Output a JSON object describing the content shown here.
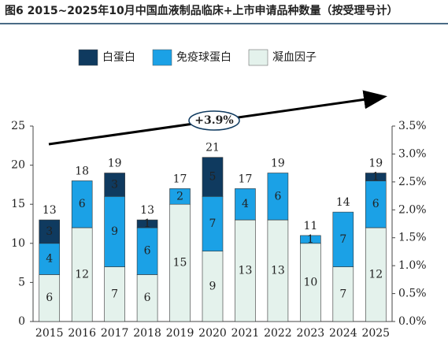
{
  "chart_data": {
    "type": "stacked_bar",
    "title": "图6 2015~2025年10月中国血液制品临床+上市申请品种数量（按受理号计）",
    "annotation": "+3.9%",
    "categories": [
      "2015",
      "2016",
      "2017",
      "2018",
      "2019",
      "2020",
      "2021",
      "2022",
      "2023",
      "2024",
      "2025"
    ],
    "series": [
      {
        "name": "白蛋白",
        "color": "#0f3a5f",
        "label_color": "#ffffff",
        "values": [
          3,
          null,
          3,
          1,
          null,
          5,
          null,
          null,
          null,
          null,
          1
        ]
      },
      {
        "name": "免疫球蛋白",
        "color": "#1ba1e6",
        "label_color": "#ffffff",
        "values": [
          4,
          6,
          9,
          6,
          2,
          7,
          4,
          6,
          1,
          7,
          6
        ]
      },
      {
        "name": "凝血因子",
        "color": "#e4f2ec",
        "label_color": "#222222",
        "values": [
          6,
          12,
          7,
          6,
          15,
          9,
          13,
          13,
          10,
          7,
          12
        ]
      }
    ],
    "stack_order": [
      2,
      1,
      0
    ],
    "totals": [
      13,
      18,
      19,
      13,
      17,
      21,
      17,
      19,
      11,
      14,
      19
    ],
    "ylim": [
      0,
      25
    ],
    "yticks": [
      0,
      5,
      10,
      15,
      20,
      25
    ],
    "y2lim": [
      0,
      3.5
    ],
    "y2ticks": [
      {
        "value": 0,
        "label": "0.0%"
      },
      {
        "value": 0.5,
        "label": "0.5%"
      },
      {
        "value": 1,
        "label": "1.0%"
      },
      {
        "value": 1.5,
        "label": "1.5%"
      },
      {
        "value": 2,
        "label": "2.0%"
      },
      {
        "value": 2.5,
        "label": "2.5%"
      },
      {
        "value": 3,
        "label": "3.0%"
      },
      {
        "value": 3.5,
        "label": "3.5%"
      }
    ]
  }
}
